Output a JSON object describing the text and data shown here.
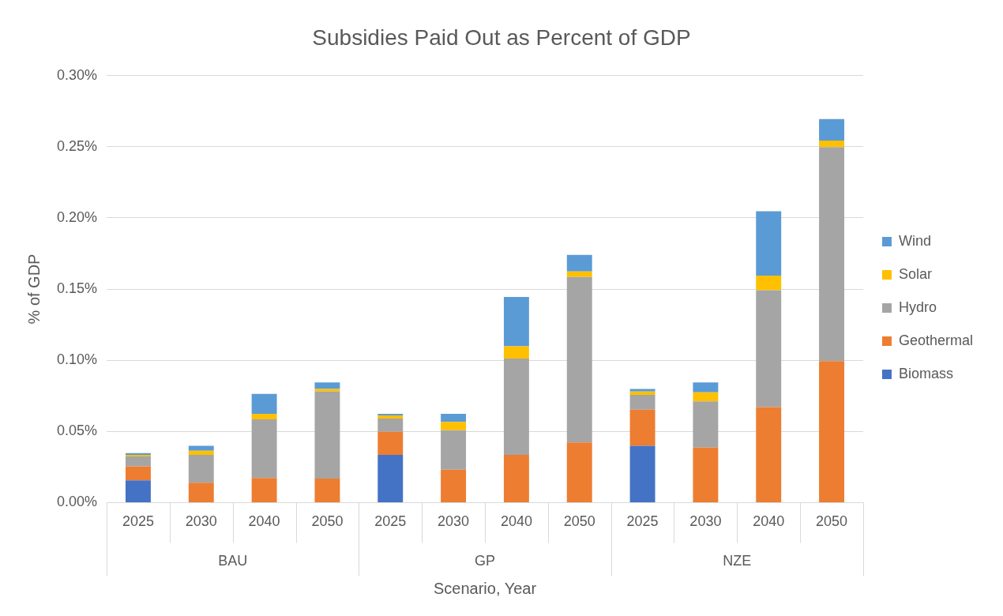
{
  "chart_data": {
    "type": "bar",
    "title": "Subsidies Paid Out as Percent of GDP",
    "xlabel": "Scenario, Year",
    "ylabel": "% of GDP",
    "categories": [
      "2025",
      "2030",
      "2040",
      "2050",
      "2025",
      "2030",
      "2040",
      "2050",
      "2025",
      "2030",
      "2040",
      "2050"
    ],
    "annotations": [
      "BAU",
      "GP",
      "NZE"
    ],
    "stacked": true,
    "series": [
      {
        "name": "Biomass",
        "color": "#4472c4",
        "values": [
          0.0156,
          0,
          0,
          0,
          0.0335,
          0,
          0,
          0,
          0.0399,
          0,
          0,
          0
        ]
      },
      {
        "name": "Geothermal",
        "color": "#ed7d31",
        "values": [
          0.0098,
          0.0139,
          0.0173,
          0.0168,
          0.0162,
          0.0231,
          0.0335,
          0.0422,
          0.0254,
          0.0387,
          0.0671,
          0.0994
        ]
      },
      {
        "name": "Hydro",
        "color": "#a5a5a5",
        "values": [
          0.007,
          0.0196,
          0.0411,
          0.0612,
          0.0093,
          0.0278,
          0.0677,
          0.1162,
          0.0104,
          0.0324,
          0.082,
          0.1503
        ]
      },
      {
        "name": "Solar",
        "color": "#ffc000",
        "values": [
          0.0011,
          0.0029,
          0.004,
          0.0018,
          0.0023,
          0.0057,
          0.0086,
          0.004,
          0.0023,
          0.0064,
          0.0104,
          0.0046
        ]
      },
      {
        "name": "Wind",
        "color": "#5b9bd5",
        "values": [
          0.0012,
          0.0035,
          0.0139,
          0.0046,
          0.0011,
          0.0058,
          0.0347,
          0.0116,
          0.0018,
          0.0069,
          0.0451,
          0.0151
        ]
      }
    ],
    "ylim": [
      0,
      0.3
    ],
    "yticks": [
      {
        "value": 0,
        "label": "0.00%"
      },
      {
        "value": 0.05,
        "label": "0.05%"
      },
      {
        "value": 0.1,
        "label": "0.10%"
      },
      {
        "value": 0.15,
        "label": "0.15%"
      },
      {
        "value": 0.2,
        "label": "0.20%"
      },
      {
        "value": 0.25,
        "label": "0.25%"
      },
      {
        "value": 0.3,
        "label": "0.30%"
      }
    ],
    "grid": "y",
    "legend": "right"
  }
}
